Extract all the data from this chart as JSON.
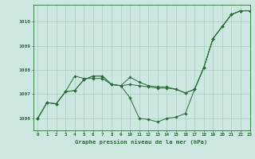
{
  "title": "Graphe pression niveau de la mer (hPa)",
  "background_color": "#cce8e0",
  "grid_color": "#aaccC4",
  "line_color": "#2d6b3c",
  "xlim": [
    -0.5,
    23
  ],
  "ylim": [
    1005.5,
    1010.7
  ],
  "yticks": [
    1006,
    1007,
    1008,
    1009,
    1010
  ],
  "xticks": [
    0,
    1,
    2,
    3,
    4,
    5,
    6,
    7,
    8,
    9,
    10,
    11,
    12,
    13,
    14,
    15,
    16,
    17,
    18,
    19,
    20,
    21,
    22,
    23
  ],
  "line1": [
    1006.0,
    1006.65,
    1006.6,
    1007.1,
    1007.75,
    1007.65,
    1007.65,
    1007.65,
    1007.4,
    1007.35,
    1006.85,
    1006.0,
    1005.95,
    1005.85,
    1006.0,
    1006.05,
    1006.2,
    1007.2,
    1008.1,
    1009.3,
    1009.8,
    1010.3,
    1010.45,
    1010.45
  ],
  "line2": [
    1006.0,
    1006.65,
    1006.6,
    1007.1,
    1007.15,
    1007.6,
    1007.75,
    1007.75,
    1007.4,
    1007.35,
    1007.4,
    1007.35,
    1007.3,
    1007.25,
    1007.25,
    1007.2,
    1007.05,
    1007.2,
    1008.1,
    1009.3,
    1009.8,
    1010.3,
    1010.45,
    1010.45
  ],
  "line3": [
    1006.0,
    1006.65,
    1006.6,
    1007.1,
    1007.15,
    1007.6,
    1007.75,
    1007.75,
    1007.4,
    1007.35,
    1007.7,
    1007.5,
    1007.35,
    1007.3,
    1007.3,
    1007.2,
    1007.05,
    1007.2,
    1008.1,
    1009.3,
    1009.8,
    1010.3,
    1010.45,
    1010.45
  ]
}
